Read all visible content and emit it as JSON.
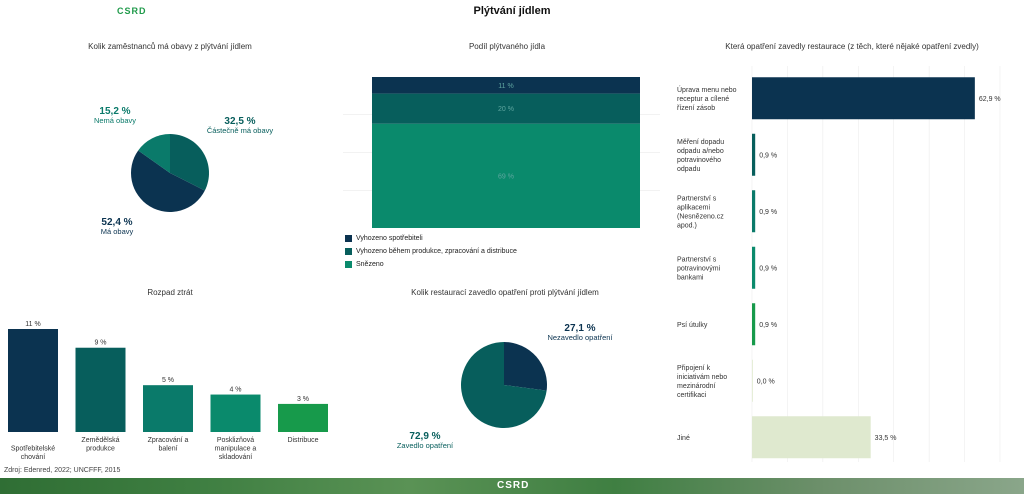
{
  "header": {
    "logo": "CSRD",
    "title": "Plýtvání jídlem"
  },
  "colors": {
    "dark": "#0b3350",
    "teal": "#075e5c",
    "green": "#0a8a6c",
    "green2": "#179a4b",
    "light": "#dfe9cf"
  },
  "source": "Zdroj: Edenred, 2022; UNCFFF, 2015",
  "footer_logo": "CSRD",
  "chart_data": [
    {
      "id": "pie_concern",
      "type": "pie",
      "title": "Kolik zaměstnanců má obavy z plýtvání jídlem",
      "slices": [
        {
          "name": "Částečně má obavy",
          "value": 32.5,
          "label": "32,5 %",
          "color": "#075e5c"
        },
        {
          "name": "Má obavy",
          "value": 52.4,
          "label": "52,4 %",
          "color": "#0b3350"
        },
        {
          "name": "Nemá obavy",
          "value": 15.2,
          "label": "15,2 %",
          "color": "#0a7a6a"
        }
      ]
    },
    {
      "id": "stacked_share",
      "type": "bar",
      "title": "Podíl plýtvaného jídla",
      "series": [
        {
          "name": "Vyhozeno spotřebiteli",
          "value": 11,
          "label": "11 %",
          "color": "#0b3350"
        },
        {
          "name": "Vyhozeno během produkce, zpracování a distribuce",
          "value": 20,
          "label": "20 %",
          "color": "#075e5c"
        },
        {
          "name": "Snězeno",
          "value": 69,
          "label": "69 %",
          "color": "#0a8a6c"
        }
      ],
      "ylim": [
        0,
        100
      ]
    },
    {
      "id": "hbar_measures",
      "type": "bar",
      "orientation": "horizontal",
      "title": "Která opatření zavedly restaurace (z těch, které nějaké opatření zvedly)",
      "categories": [
        "Úprava menu nebo receptur a cílené řízení zásob",
        "Měření dopadu odpadu a/nebo potravinového odpadu",
        "Partnerství s aplikacemi (Nesnězeno.cz apod.)",
        "Partnerství s potravinovými bankami",
        "Psí útulky",
        "Připojení k iniciativám nebo mezinárodní certifikaci",
        "Jiné"
      ],
      "values": [
        62.9,
        0.9,
        0.9,
        0.9,
        0.9,
        0.0,
        33.5
      ],
      "value_labels": [
        "62,9 %",
        "0,9 %",
        "0,9 %",
        "0,9 %",
        "0,9 %",
        "0,0 %",
        "33,5 %"
      ],
      "colors": [
        "#0b3350",
        "#075e5c",
        "#0a7a6a",
        "#0a8a6c",
        "#179a4b",
        "#dfe9cf",
        "#dfe9cf"
      ],
      "xlim": [
        0,
        70
      ]
    },
    {
      "id": "bar_losses",
      "type": "bar",
      "title": "Rozpad ztrát",
      "categories": [
        "Spotřebitelské chování",
        "Zemědělská produkce",
        "Zpracování a balení",
        "Posklizňová manipulace a skladování",
        "Distribuce"
      ],
      "values": [
        11,
        9,
        5,
        4,
        3
      ],
      "value_labels": [
        "11 %",
        "9 %",
        "5 %",
        "4 %",
        "3 %"
      ],
      "colors": [
        "#0b3350",
        "#075e5c",
        "#0a7a6a",
        "#0a8a6c",
        "#179a4b"
      ],
      "ylim": [
        0,
        11
      ]
    },
    {
      "id": "pie_measures",
      "type": "pie",
      "title": "Kolik restaurací zavedlo opatření proti plýtvání jídlem",
      "slices": [
        {
          "name": "Nezavedlo opatření",
          "value": 27.1,
          "label": "27,1 %",
          "color": "#0b3350"
        },
        {
          "name": "Zavedlo opatření",
          "value": 72.9,
          "label": "72,9 %",
          "color": "#075e5c"
        }
      ]
    }
  ]
}
